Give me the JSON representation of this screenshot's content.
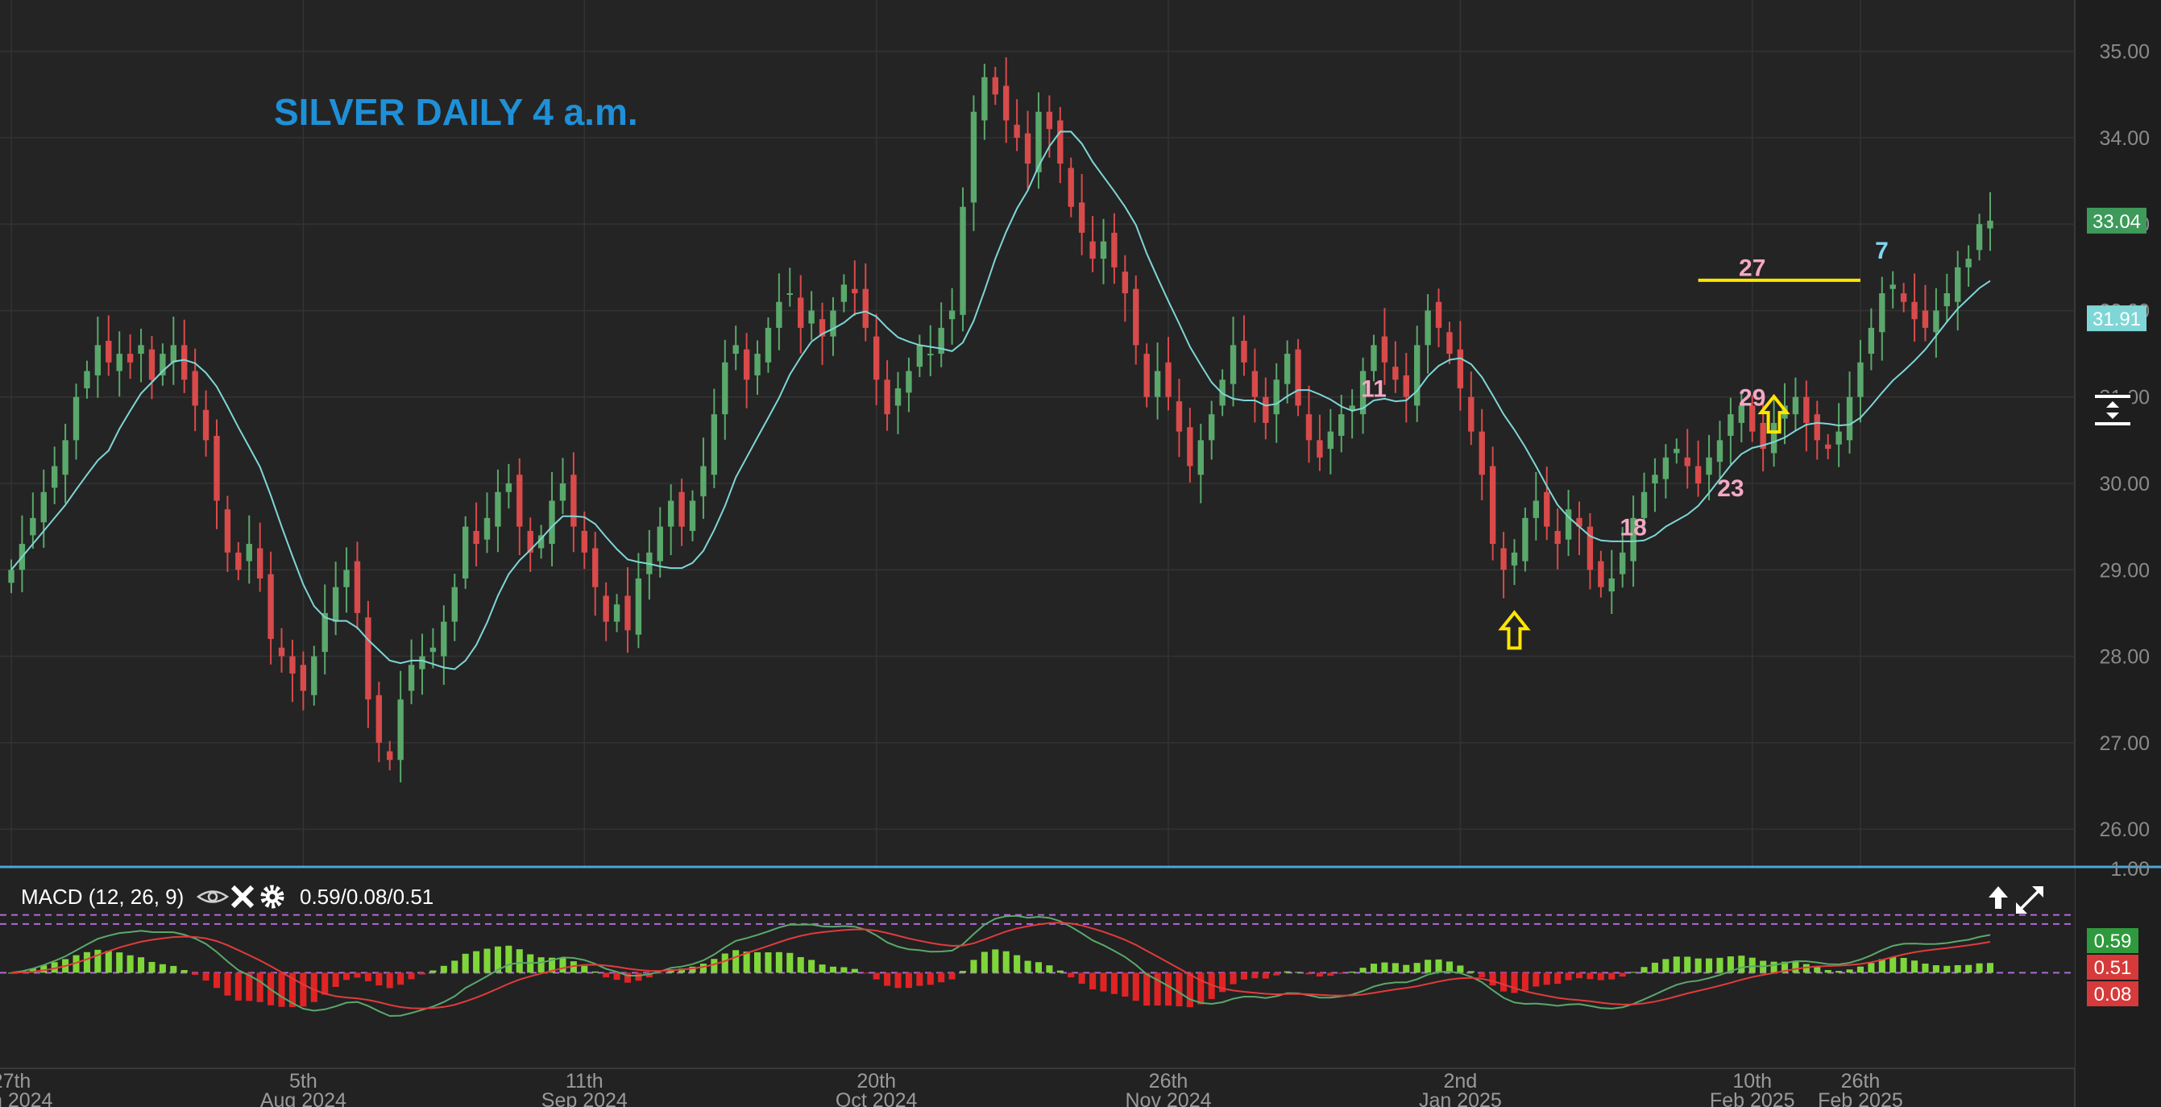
{
  "chart_title": "SILVER DAILY 4 a.m.",
  "chart_data": [
    {
      "type": "candlestick",
      "title": "SILVER DAILY 4 a.m.",
      "ylim": [
        25.6,
        35.5
      ],
      "yticks": [
        "35.00",
        "34.00",
        "33.00",
        "32.00",
        "31.00",
        "30.00",
        "29.00",
        "28.00",
        "27.00",
        "26.00"
      ],
      "price_tags": [
        {
          "value": "33.04",
          "price": 33.04,
          "color": "#3d9a5a"
        },
        {
          "value": "31.91",
          "price": 31.91,
          "color": "#7fd6d6"
        }
      ],
      "date_labels": [
        {
          "day": "27th",
          "month": "Jun 2024",
          "index": 0
        },
        {
          "day": "5th",
          "month": "Aug 2024",
          "index": 27
        },
        {
          "day": "11th",
          "month": "Sep 2024",
          "index": 53
        },
        {
          "day": "20th",
          "month": "Oct 2024",
          "index": 80
        },
        {
          "day": "26th",
          "month": "Nov 2024",
          "index": 107
        },
        {
          "day": "2nd",
          "month": "Jan 2025",
          "index": 134
        },
        {
          "day": "10th",
          "month": "Feb 2025",
          "index": 161
        },
        {
          "day": "26th",
          "month": "Feb 2025",
          "index": 171
        }
      ],
      "moving_average_color": "#7fd6d6",
      "up_color": "#5aa86b",
      "down_color": "#d94a4a",
      "closes": [
        29.0,
        29.3,
        29.6,
        29.9,
        30.2,
        30.5,
        31.0,
        31.3,
        31.6,
        31.4,
        31.5,
        31.4,
        31.6,
        31.2,
        31.5,
        31.6,
        31.2,
        30.9,
        30.5,
        29.8,
        29.2,
        29.0,
        29.3,
        28.9,
        28.2,
        28.0,
        27.8,
        27.6,
        28.0,
        28.5,
        28.8,
        29.0,
        28.5,
        27.5,
        27.0,
        26.8,
        27.5,
        27.9,
        28.0,
        28.1,
        28.4,
        28.8,
        29.5,
        29.3,
        29.6,
        29.9,
        30.0,
        29.5,
        29.2,
        29.4,
        29.8,
        30.0,
        29.5,
        29.2,
        28.8,
        28.4,
        28.6,
        28.3,
        28.9,
        29.2,
        29.5,
        29.8,
        29.5,
        29.8,
        30.2,
        30.8,
        31.4,
        31.6,
        31.2,
        31.5,
        31.8,
        32.1,
        32.2,
        31.8,
        32.0,
        31.7,
        32.0,
        32.3,
        32.2,
        31.8,
        31.2,
        30.8,
        31.1,
        31.3,
        31.6,
        31.5,
        31.8,
        32.0,
        33.2,
        34.3,
        34.7,
        34.5,
        34.2,
        34.0,
        33.7,
        34.3,
        34.1,
        33.7,
        33.2,
        32.9,
        32.6,
        32.8,
        32.5,
        32.2,
        31.6,
        31.0,
        31.3,
        31.0,
        30.6,
        30.2,
        30.5,
        30.8,
        31.2,
        31.6,
        31.4,
        31.0,
        30.7,
        31.2,
        31.5,
        30.9,
        30.5,
        30.3,
        30.6,
        30.8,
        30.9,
        31.3,
        31.6,
        31.4,
        31.2,
        31.0,
        31.6,
        32.0,
        31.8,
        31.5,
        31.1,
        30.6,
        30.1,
        29.3,
        29.0,
        29.2,
        29.6,
        29.8,
        29.5,
        29.3,
        29.7,
        29.5,
        29.0,
        28.8,
        28.9,
        29.2,
        29.6,
        29.9,
        30.1,
        30.3,
        30.4,
        30.2,
        30.0,
        30.3,
        30.5,
        30.8,
        30.9,
        30.6,
        30.4,
        30.7,
        30.9,
        31.0,
        30.7,
        30.5,
        30.4,
        30.6,
        31.0,
        31.4,
        31.8,
        32.2,
        32.3,
        32.1,
        31.9,
        31.8,
        32.0,
        32.2,
        32.5,
        32.6,
        33.0,
        33.04
      ]
    },
    {
      "type": "line",
      "title": "MACD (12, 26, 9)",
      "label": "MACD (12, 26, 9)",
      "values_text": "0.59/0.08/0.51",
      "ylim": [
        -0.75,
        1.0
      ],
      "ytick_top": "1.00",
      "tags": [
        {
          "value": "0.59",
          "level": 0.59,
          "color": "#2f9a3d"
        },
        {
          "value": "0.51",
          "level": 0.51,
          "color": "#d63a3a"
        },
        {
          "value": "0.08",
          "level": 0.08,
          "color": "#d63a3a"
        }
      ],
      "series": [
        {
          "color": "#5aa86b"
        },
        {
          "color": "#e23b3b"
        }
      ],
      "histogram_up_color": "#7fd63a",
      "histogram_down_color": "#e02424"
    }
  ],
  "annotations": {
    "labels": [
      {
        "text": "11",
        "color": "#f4a8c4"
      },
      {
        "text": "18",
        "color": "#f4a8c4"
      },
      {
        "text": "23",
        "color": "#f4a8c4"
      },
      {
        "text": "27",
        "color": "#f4a8c4"
      },
      {
        "text": "29",
        "color": "#f4a8c4"
      },
      {
        "text": "7",
        "color": "#7fd6f2"
      }
    ],
    "arrow_color": "#ffe600",
    "resistance_line_color": "#ffe600",
    "resistance_price": 32.35
  },
  "toolbar": {
    "eye_icon": "eye-icon",
    "close_icon": "close-icon",
    "settings_icon": "gear-icon",
    "arrow_up_icon": "arrow-up-icon",
    "expand_icon": "expand-icon"
  }
}
